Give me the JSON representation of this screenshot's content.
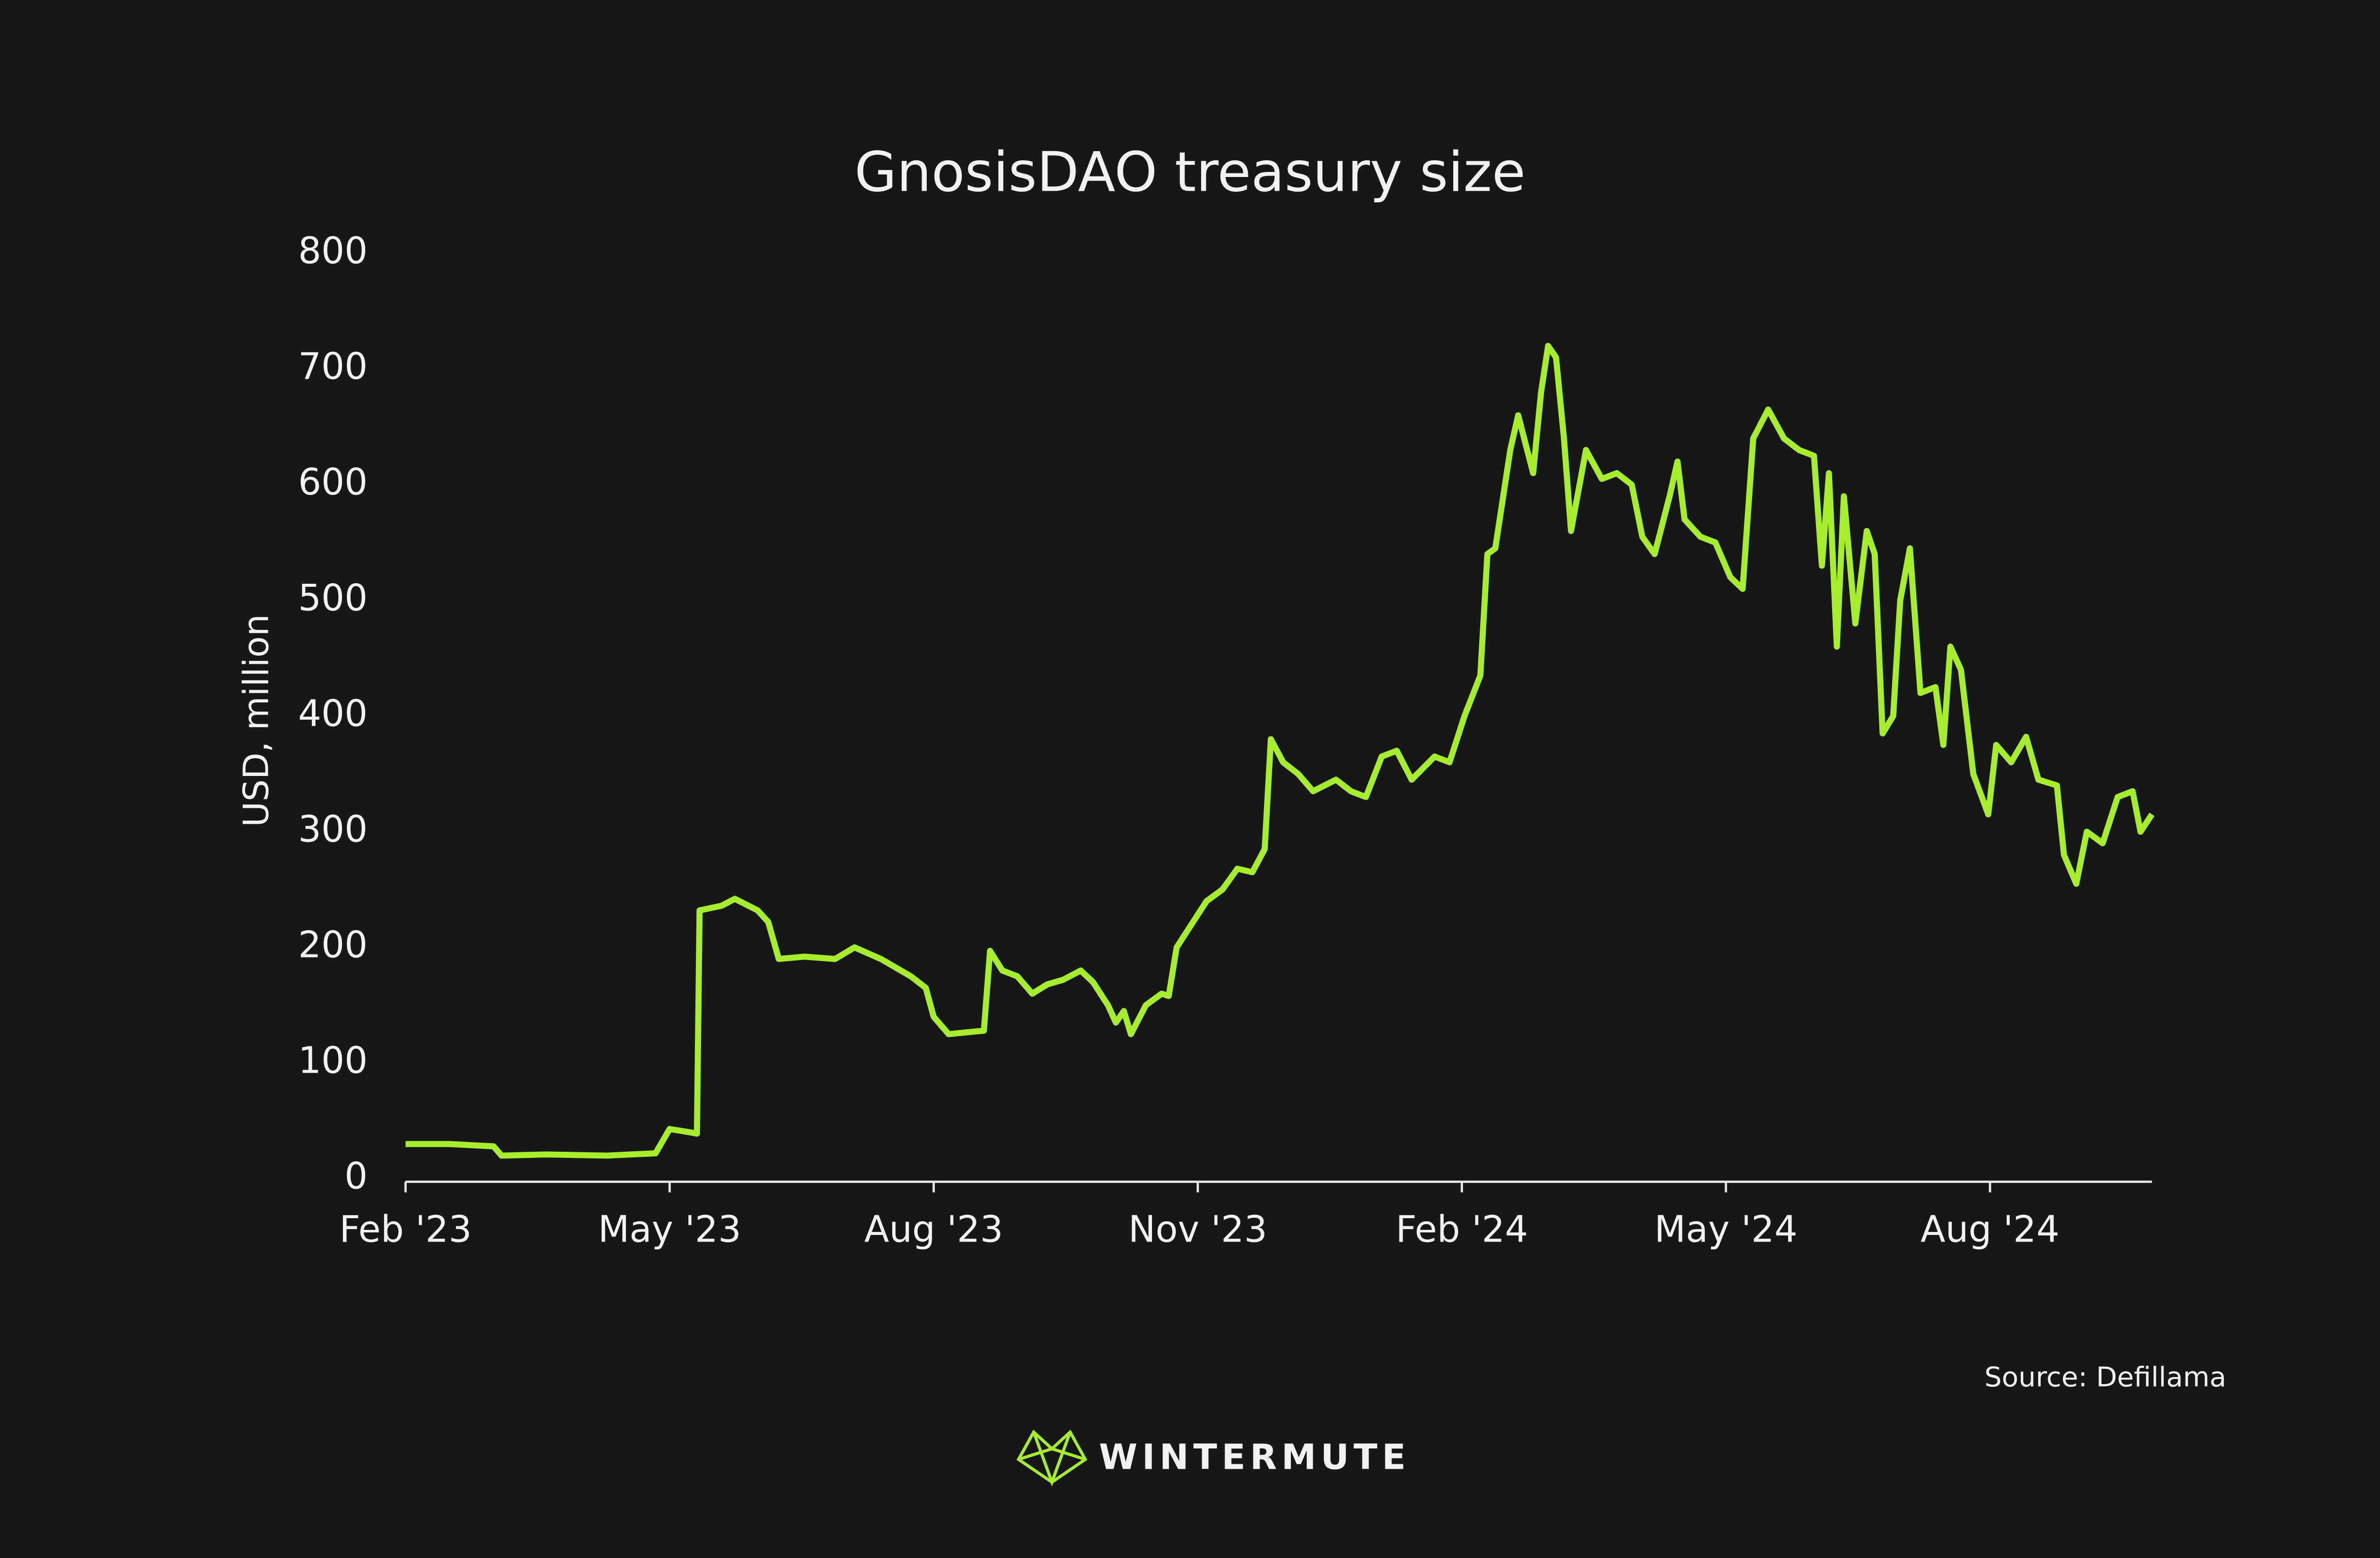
{
  "chart_data": {
    "type": "line",
    "title": "GnosisDAO treasury size",
    "ylabel": "USD, million",
    "source": "Source: Defillama",
    "brand": "WINTERMUTE",
    "x": [
      0,
      0.5,
      1.0,
      1.09,
      1.6,
      2.29,
      2.84,
      3.0,
      3.24,
      3.31,
      3.34,
      3.59,
      3.74,
      4.0,
      4.12,
      4.24,
      4.53,
      4.88,
      5.1,
      5.4,
      5.74,
      5.91,
      6.0,
      6.17,
      6.43,
      6.57,
      6.64,
      6.78,
      6.95,
      7.12,
      7.29,
      7.47,
      7.67,
      7.81,
      7.98,
      8.07,
      8.16,
      8.24,
      8.41,
      8.59,
      8.67,
      8.76,
      8.93,
      9.1,
      9.28,
      9.45,
      9.62,
      9.76,
      9.83,
      9.97,
      10.14,
      10.31,
      10.57,
      10.74,
      10.91,
      11.09,
      11.26,
      11.43,
      11.69,
      11.86,
      12.03,
      12.21,
      12.29,
      12.38,
      12.55,
      12.64,
      12.81,
      12.9,
      12.98,
      13.07,
      13.16,
      13.24,
      13.41,
      13.59,
      13.76,
      13.93,
      14.05,
      14.19,
      14.36,
      14.45,
      14.53,
      14.71,
      14.88,
      15.05,
      15.19,
      15.31,
      15.48,
      15.66,
      15.83,
      16.0,
      16.09,
      16.17,
      16.26,
      16.34,
      16.47,
      16.6,
      16.69,
      16.78,
      16.9,
      16.98,
      17.09,
      17.21,
      17.38,
      17.47,
      17.55,
      17.67,
      17.81,
      17.98,
      18.07,
      18.24,
      18.41,
      18.55,
      18.76,
      18.84,
      18.98,
      19.1,
      19.28,
      19.45,
      19.62,
      19.71,
      19.84
    ],
    "series": [
      {
        "name": "GnosisDAO treasury",
        "color": "#a6ee2c",
        "values": [
          30,
          30,
          28,
          20,
          21,
          20,
          22,
          43,
          40,
          39,
          232,
          236,
          242,
          232,
          222,
          190,
          192,
          190,
          200,
          190,
          175,
          165,
          140,
          125,
          127,
          128,
          197,
          180,
          175,
          160,
          168,
          172,
          180,
          170,
          150,
          135,
          145,
          125,
          150,
          160,
          158,
          200,
          220,
          240,
          250,
          268,
          265,
          285,
          380,
          360,
          350,
          335,
          345,
          335,
          330,
          365,
          370,
          345,
          365,
          360,
          400,
          435,
          540,
          545,
          630,
          660,
          610,
          680,
          720,
          710,
          640,
          560,
          630,
          605,
          610,
          600,
          555,
          540,
          590,
          620,
          570,
          555,
          550,
          520,
          510,
          640,
          665,
          640,
          630,
          625,
          530,
          610,
          460,
          590,
          480,
          560,
          540,
          385,
          400,
          500,
          545,
          420,
          425,
          375,
          460,
          440,
          350,
          315,
          375,
          360,
          382,
          345,
          340,
          280,
          255,
          300,
          290,
          330,
          335,
          300,
          315
        ]
      }
    ],
    "xlim": [
      0,
      19.84
    ],
    "xticks": [
      {
        "value": 0,
        "label": "Feb '23"
      },
      {
        "value": 3,
        "label": "May '23"
      },
      {
        "value": 6,
        "label": "Aug '23"
      },
      {
        "value": 9,
        "label": "Nov '23"
      },
      {
        "value": 12,
        "label": "Feb '24"
      },
      {
        "value": 15,
        "label": "May '24"
      },
      {
        "value": 18,
        "label": "Aug '24"
      }
    ],
    "ylim": [
      0,
      800
    ],
    "yticks": [
      0,
      100,
      200,
      300,
      400,
      500,
      600,
      700,
      800
    ],
    "grid": false
  }
}
